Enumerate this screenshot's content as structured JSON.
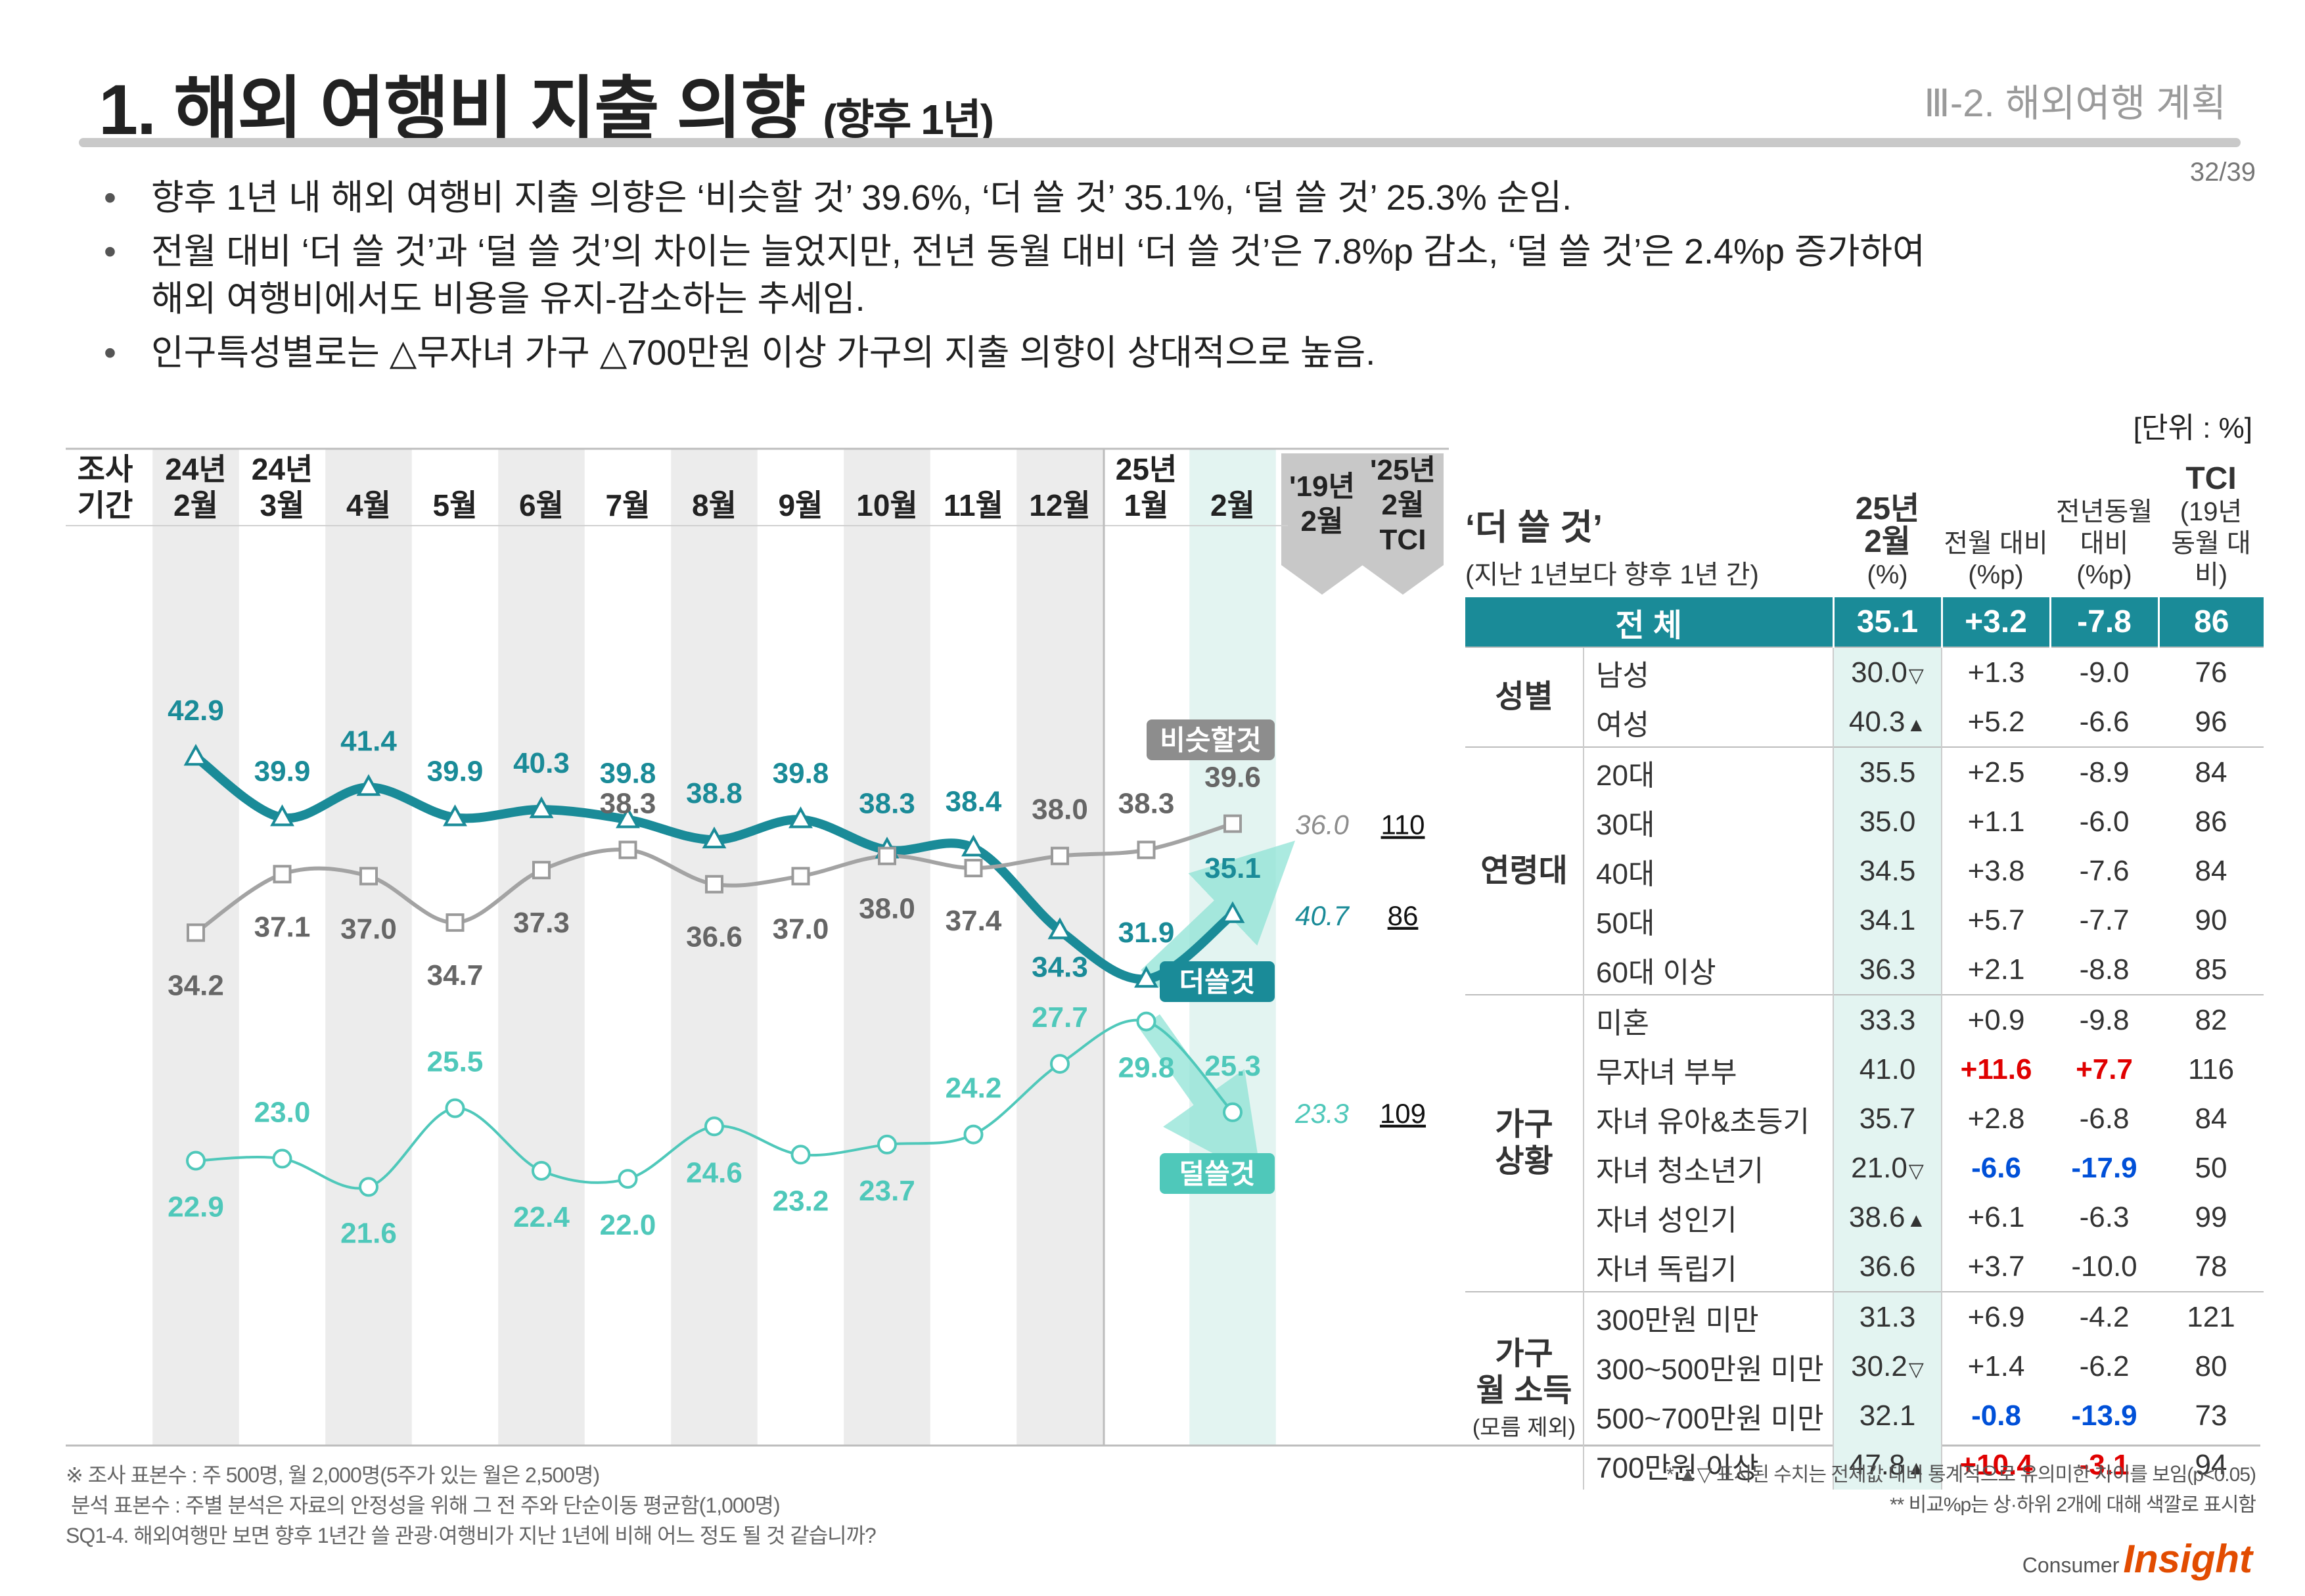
{
  "header": {
    "title": "1. 해외 여행비 지출 의향",
    "title_sub": "(향후 1년)",
    "section": "Ⅲ-2. 해외여행 계획",
    "page": "32/39"
  },
  "bullets": [
    "향후 1년 내 해외 여행비 지출 의향은 ‘비슷할 것’ 39.6%, ‘더 쓸 것’ 35.1%, ‘덜 쓸 것’ 25.3% 순임.",
    "전월 대비 ‘더 쓸 것’과 ‘덜 쓸 것’의 차이는 늘었지만, 전년 동월 대비 ‘더 쓸 것’은 7.8%p 감소, ‘덜 쓸 것’은 2.4%p 증가하여",
    "해외 여행비에서도 비용을 유지-감소하는 추세임.",
    "인구특성별로는 △무자녀 가구 △700만원 이상 가구의 지출 의향이 상대적으로 높음."
  ],
  "unit": "[단위 : %]",
  "chart_data": {
    "type": "line",
    "period_label": [
      "조사",
      "기간"
    ],
    "categories": [
      [
        "24년",
        "2월"
      ],
      [
        "24년",
        "3월"
      ],
      [
        "4월"
      ],
      [
        "5월"
      ],
      [
        "6월"
      ],
      [
        "7월"
      ],
      [
        "8월"
      ],
      [
        "9월"
      ],
      [
        "10월"
      ],
      [
        "11월"
      ],
      [
        "12월"
      ],
      [
        "25년",
        "1월"
      ],
      [
        "2월"
      ]
    ],
    "series": [
      {
        "name": "더쓸것",
        "color": "#1a8b98",
        "marker": "triangle",
        "values": [
          42.9,
          39.9,
          41.4,
          39.9,
          40.3,
          39.8,
          38.8,
          39.8,
          38.3,
          38.4,
          34.3,
          31.9,
          35.1
        ]
      },
      {
        "name": "비슷할것",
        "color": "#a3a3a3",
        "marker": "square",
        "values": [
          34.2,
          37.1,
          37.0,
          34.7,
          37.3,
          38.3,
          36.6,
          37.0,
          38.0,
          37.4,
          38.0,
          38.3,
          39.6
        ]
      },
      {
        "name": "덜쓸것",
        "color": "#4fc8ba",
        "marker": "circle",
        "values": [
          22.9,
          23.0,
          21.6,
          25.5,
          22.4,
          22.0,
          24.6,
          23.2,
          23.7,
          24.2,
          27.7,
          29.8,
          25.3
        ]
      }
    ],
    "compare": {
      "headers": [
        [
          "'19년",
          "2월"
        ],
        [
          "'25년",
          "2월",
          "TCI"
        ]
      ],
      "rows": [
        {
          "series": "비슷할것",
          "y2019": "36.0",
          "tci": "110"
        },
        {
          "series": "더쓸것",
          "y2019": "40.7",
          "tci": "86"
        },
        {
          "series": "덜쓸것",
          "y2019": "23.3",
          "tci": "109"
        }
      ]
    },
    "ylim": [
      18,
      46
    ]
  },
  "table": {
    "title": "‘더 쓸 것’",
    "subtitle": "(지난 1년보다 향후 1년 간)",
    "headers": [
      [
        "25년",
        "2월",
        "(%)"
      ],
      [
        "전월 대비",
        "(%p)"
      ],
      [
        "전년동월",
        "대비 (%p)"
      ],
      [
        "TCI",
        "(19년",
        "동월 대비)"
      ]
    ],
    "total": {
      "label": "전 체",
      "values": [
        "35.1",
        "+3.2",
        "-7.8",
        "86"
      ]
    },
    "groups": [
      {
        "label": [
          "성별"
        ],
        "rows": [
          {
            "label": "남성",
            "v": "30.0",
            "mark": "▽",
            "m": "+1.3",
            "y": "-9.0",
            "t": "76"
          },
          {
            "label": "여성",
            "v": "40.3",
            "mark": "▲",
            "m": "+5.2",
            "y": "-6.6",
            "t": "96"
          }
        ]
      },
      {
        "label": [
          "연령대"
        ],
        "rows": [
          {
            "label": "20대",
            "v": "35.5",
            "m": "+2.5",
            "y": "-8.9",
            "t": "84"
          },
          {
            "label": "30대",
            "v": "35.0",
            "m": "+1.1",
            "y": "-6.0",
            "t": "86"
          },
          {
            "label": "40대",
            "v": "34.5",
            "m": "+3.8",
            "y": "-7.6",
            "t": "84"
          },
          {
            "label": "50대",
            "v": "34.1",
            "m": "+5.7",
            "y": "-7.7",
            "t": "90"
          },
          {
            "label": "60대 이상",
            "v": "36.3",
            "m": "+2.1",
            "y": "-8.8",
            "t": "85"
          }
        ]
      },
      {
        "label": [
          "가구",
          "상황"
        ],
        "rows": [
          {
            "label": "미혼",
            "v": "33.3",
            "m": "+0.9",
            "y": "-9.8",
            "t": "82"
          },
          {
            "label": "무자녀 부부",
            "v": "41.0",
            "m": "+11.6",
            "mc": "up",
            "y": "+7.7",
            "yc": "up",
            "t": "116"
          },
          {
            "label": "자녀 유아&초등기",
            "v": "35.7",
            "m": "+2.8",
            "y": "-6.8",
            "t": "84"
          },
          {
            "label": "자녀 청소년기",
            "v": "21.0",
            "mark": "▽",
            "m": "-6.6",
            "mc": "dn",
            "y": "-17.9",
            "yc": "dn",
            "t": "50"
          },
          {
            "label": "자녀 성인기",
            "v": "38.6",
            "mark": "▲",
            "m": "+6.1",
            "y": "-6.3",
            "t": "99"
          },
          {
            "label": "자녀 독립기",
            "v": "36.6",
            "m": "+3.7",
            "y": "-10.0",
            "t": "78"
          }
        ]
      },
      {
        "label": [
          "가구",
          "월 소득"
        ],
        "note": "(모름 제외)",
        "rows": [
          {
            "label": "300만원 미만",
            "v": "31.3",
            "m": "+6.9",
            "y": "-4.2",
            "t": "121"
          },
          {
            "label": "300~500만원 미만",
            "v": "30.2",
            "mark": "▽",
            "m": "+1.4",
            "y": "-6.2",
            "t": "80"
          },
          {
            "label": "500~700만원 미만",
            "v": "32.1",
            "m": "-0.8",
            "mc": "dn",
            "y": "-13.9",
            "yc": "dn",
            "t": "73"
          },
          {
            "label": "700만원 이상",
            "v": "47.8",
            "mark": "▲",
            "m": "+10.4",
            "mc": "up",
            "y": "-3.1",
            "yc": "up",
            "t": "94"
          }
        ]
      }
    ]
  },
  "footnotes": {
    "left": [
      "※ 조사 표본수 : 주 500명, 월 2,000명(5주가 있는 월은 2,500명)",
      "분석 표본수 : 주별 분석은 자료의 안정성을 위해 그 전 주와 단순이동 평균함(1,000명)",
      "SQ1-4. 해외여행만 보면 향후 1년간 쓸 관광·여행비가 지난 1년에 비해 어느 정도 될 것 같습니까?"
    ],
    "right": [
      "* ▲▽ 표시된 수치는 전체값 대비 통계적으로 유의미한 차이를 보임(p<0.05)",
      "** 비교%p는 상·하위 2개에 대해 색깔로 표시함"
    ]
  },
  "logo": {
    "top": "Consumer",
    "main": "Insight"
  },
  "colors": {
    "teal": "#1a8b98",
    "mint": "#4fc8ba",
    "gray": "#a3a3a3",
    "red": "#e00000",
    "blue": "#0050d8"
  }
}
